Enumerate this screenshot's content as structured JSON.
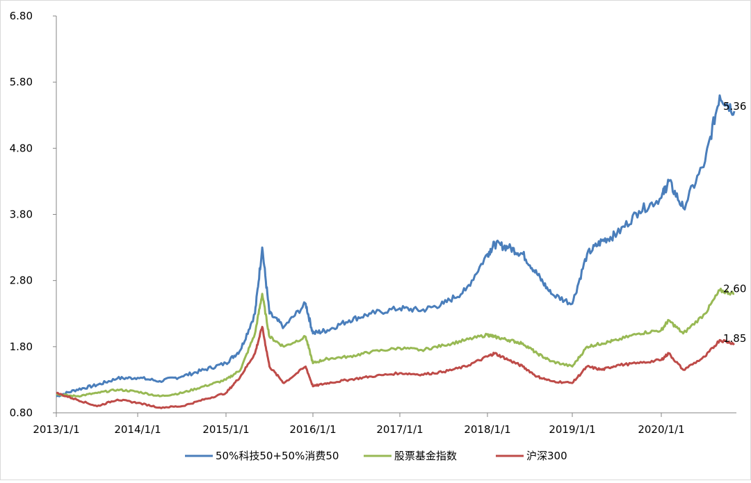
{
  "chart_data": {
    "type": "line",
    "title": "",
    "xlabel": "",
    "ylabel": "",
    "ylim": [
      0.8,
      6.8
    ],
    "y_ticks": [
      "0.80",
      "1.80",
      "2.80",
      "3.80",
      "4.80",
      "5.80",
      "6.80"
    ],
    "x_ticks": [
      "2013/1/1",
      "2014/1/1",
      "2015/1/1",
      "2016/1/1",
      "2017/1/1",
      "2018/1/1",
      "2019/1/1",
      "2020/1/1"
    ],
    "grid": false,
    "legend_position": "bottom",
    "x": [
      "2013-01",
      "2013-04",
      "2013-07",
      "2013-10",
      "2014-01",
      "2014-04",
      "2014-07",
      "2014-10",
      "2015-01",
      "2015-03",
      "2015-05",
      "2015-06",
      "2015-07",
      "2015-09",
      "2015-12",
      "2016-01",
      "2016-03",
      "2016-06",
      "2016-09",
      "2017-01",
      "2017-04",
      "2017-07",
      "2017-10",
      "2018-01",
      "2018-02",
      "2018-04",
      "2018-06",
      "2018-08",
      "2018-10",
      "2019-01",
      "2019-03",
      "2019-05",
      "2019-07",
      "2019-10",
      "2020-01",
      "2020-02",
      "2020-04",
      "2020-07",
      "2020-09",
      "2020-11"
    ],
    "series": [
      {
        "name": "50%科技50+50%消费50",
        "color": "#4a7ebb",
        "end_label": "5.36",
        "values": [
          1.05,
          1.15,
          1.22,
          1.32,
          1.33,
          1.28,
          1.35,
          1.45,
          1.55,
          1.75,
          2.3,
          3.3,
          2.3,
          2.1,
          2.45,
          2.0,
          2.05,
          2.2,
          2.3,
          2.38,
          2.35,
          2.45,
          2.65,
          3.2,
          3.35,
          3.3,
          3.2,
          2.9,
          2.6,
          2.45,
          3.2,
          3.4,
          3.5,
          3.85,
          4.05,
          4.3,
          3.9,
          4.6,
          5.6,
          5.36
        ]
      },
      {
        "name": "股票基金指数",
        "color": "#98b954",
        "end_label": "2.60",
        "values": [
          1.08,
          1.05,
          1.1,
          1.15,
          1.12,
          1.05,
          1.1,
          1.2,
          1.3,
          1.45,
          2.0,
          2.6,
          1.95,
          1.8,
          1.95,
          1.55,
          1.62,
          1.65,
          1.72,
          1.78,
          1.75,
          1.82,
          1.9,
          1.98,
          1.95,
          1.9,
          1.85,
          1.7,
          1.58,
          1.5,
          1.8,
          1.85,
          1.9,
          2.0,
          2.05,
          2.2,
          2.0,
          2.3,
          2.65,
          2.6
        ]
      },
      {
        "name": "沪深300",
        "color": "#be4b48",
        "end_label": "1.85",
        "values": [
          1.1,
          1.0,
          0.9,
          1.0,
          0.95,
          0.88,
          0.9,
          1.0,
          1.1,
          1.35,
          1.7,
          2.1,
          1.5,
          1.25,
          1.5,
          1.2,
          1.25,
          1.3,
          1.35,
          1.4,
          1.38,
          1.42,
          1.5,
          1.65,
          1.7,
          1.6,
          1.5,
          1.35,
          1.28,
          1.25,
          1.5,
          1.45,
          1.52,
          1.55,
          1.6,
          1.7,
          1.45,
          1.65,
          1.9,
          1.85
        ]
      }
    ]
  }
}
